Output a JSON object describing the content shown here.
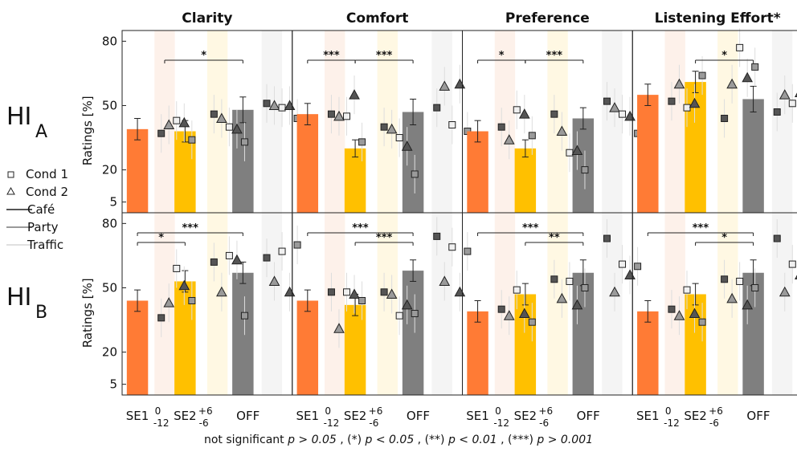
{
  "columns": [
    "Clarity",
    "Comfort",
    "Preference",
    "Listening Effort*"
  ],
  "rows": [
    {
      "label": "HI",
      "sub": "A"
    },
    {
      "label": "HI",
      "sub": "B"
    }
  ],
  "ylabel": "Ratings [%]",
  "yticks": [
    5,
    20,
    50,
    80
  ],
  "x_ticks": {
    "se1": "SE1",
    "snr0": "0",
    "snr_neg12": "-12",
    "se2": "SE2",
    "snr_pos6": "+6",
    "snr_neg6": "-6",
    "off": "OFF"
  },
  "legend": [
    {
      "label": "Cond 1",
      "kind": "marker",
      "shape": "square"
    },
    {
      "label": "Cond 2",
      "kind": "marker",
      "shape": "triangle"
    },
    {
      "label": "Café",
      "kind": "line",
      "color": "#555555"
    },
    {
      "label": "Party",
      "kind": "line",
      "color": "#9a9a9a"
    },
    {
      "label": "Traffic",
      "kind": "line",
      "color": "#e0e0e0"
    }
  ],
  "footer": {
    "ns": "not significant ",
    "ns_p": "p > 0.05",
    "s1": " , (*) ",
    "s1_p": "p < 0.05",
    "s2": " , (**) ",
    "s2_p": "p < 0.01",
    "s3": " , (***) ",
    "s3_p": "p > 0.001"
  },
  "colors": {
    "se1": "#ff7b35",
    "se2": "#ffc000",
    "off": "#7f7f7f",
    "band_se1": "#fdf1ea",
    "band_se2": "#fff8e3",
    "band_off": "#f4f4f4",
    "cafe": "#555555",
    "party": "#9a9a9a",
    "traffic": "#e0e0e0"
  },
  "chart_data": {
    "type": "bar",
    "ylim": [
      0,
      85
    ],
    "categories": [
      "SE1",
      "SE2",
      "OFF"
    ],
    "panels": [
      {
        "row": "HI A",
        "col": "Clarity",
        "bars": [
          {
            "v": 39,
            "e": 5
          },
          {
            "v": 38,
            "e": 5
          },
          {
            "v": 48,
            "e": 6
          }
        ],
        "markers": [
          [
            37,
            41,
            43,
            42,
            34
          ],
          [
            46,
            44,
            40,
            39,
            33
          ],
          [
            51,
            50,
            49,
            50,
            44
          ]
        ],
        "sig": [
          {
            "x1": 2,
            "x2": 5,
            "lvl": 0,
            "label": "*"
          }
        ]
      },
      {
        "row": "HI A",
        "col": "Comfort",
        "bars": [
          {
            "v": 46,
            "e": 5
          },
          {
            "v": 30,
            "e": 4
          },
          {
            "v": 47,
            "e": 6
          }
        ],
        "markers": [
          [
            46,
            45,
            45,
            55,
            33
          ],
          [
            40,
            39,
            35,
            31,
            18
          ],
          [
            49,
            59,
            41,
            60,
            38
          ]
        ],
        "sig": [
          {
            "x1": 1,
            "x2": 3,
            "lvl": 0,
            "label": "***"
          },
          {
            "x1": 3,
            "x2": 5,
            "lvl": 0,
            "label": "***"
          }
        ]
      },
      {
        "row": "HI A",
        "col": "Preference",
        "bars": [
          {
            "v": 38,
            "e": 5
          },
          {
            "v": 30,
            "e": 4
          },
          {
            "v": 44,
            "e": 5
          }
        ],
        "markers": [
          [
            40,
            34,
            48,
            46,
            36
          ],
          [
            46,
            38,
            28,
            29,
            20
          ],
          [
            52,
            49,
            46,
            45,
            37
          ]
        ],
        "sig": [
          {
            "x1": 1,
            "x2": 3,
            "lvl": 0,
            "label": "*"
          },
          {
            "x1": 3,
            "x2": 5,
            "lvl": 0,
            "label": "***"
          }
        ]
      },
      {
        "row": "HI A",
        "col": "Listening Effort*",
        "bars": [
          {
            "v": 55,
            "e": 5
          },
          {
            "v": 61,
            "e": 5
          },
          {
            "v": 53,
            "e": 6
          }
        ],
        "markers": [
          [
            52,
            60,
            49,
            51,
            64
          ],
          [
            44,
            60,
            77,
            63,
            68
          ],
          [
            47,
            55,
            51,
            56,
            62
          ]
        ],
        "sig": [
          {
            "x1": 3,
            "x2": 5,
            "lvl": 0,
            "label": "*"
          }
        ]
      },
      {
        "row": "HI B",
        "col": "Clarity",
        "bars": [
          {
            "v": 44,
            "e": 5
          },
          {
            "v": 53,
            "e": 5
          },
          {
            "v": 57,
            "e": 5
          }
        ],
        "markers": [
          [
            36,
            43,
            59,
            51,
            44
          ],
          [
            62,
            48,
            65,
            63,
            37
          ],
          [
            64,
            53,
            67,
            48,
            70
          ]
        ],
        "sig": [
          {
            "x1": 1,
            "x2": 3,
            "lvl": 0,
            "label": "*"
          },
          {
            "x1": 1,
            "x2": 5,
            "lvl": 1,
            "label": "***"
          }
        ]
      },
      {
        "row": "HI B",
        "col": "Comfort",
        "bars": [
          {
            "v": 44,
            "e": 5
          },
          {
            "v": 42,
            "e": 5
          },
          {
            "v": 58,
            "e": 5
          }
        ],
        "markers": [
          [
            48,
            31,
            48,
            47,
            44
          ],
          [
            48,
            47,
            37,
            42,
            38
          ],
          [
            74,
            53,
            69,
            48,
            67
          ]
        ],
        "sig": [
          {
            "x1": 1,
            "x2": 5,
            "lvl": 1,
            "label": "***"
          },
          {
            "x1": 3,
            "x2": 5,
            "lvl": 0,
            "label": "***"
          }
        ]
      },
      {
        "row": "HI B",
        "col": "Preference",
        "bars": [
          {
            "v": 39,
            "e": 5
          },
          {
            "v": 47,
            "e": 5
          },
          {
            "v": 57,
            "e": 6
          }
        ],
        "markers": [
          [
            40,
            37,
            49,
            38,
            34
          ],
          [
            54,
            45,
            53,
            42,
            50
          ],
          [
            73,
            48,
            61,
            56,
            60
          ]
        ],
        "sig": [
          {
            "x1": 1,
            "x2": 5,
            "lvl": 1,
            "label": "***"
          },
          {
            "x1": 3,
            "x2": 5,
            "lvl": 0,
            "label": "**"
          }
        ]
      },
      {
        "row": "HI B",
        "col": "Listening Effort*",
        "bars": [
          {
            "v": 39,
            "e": 5
          },
          {
            "v": 47,
            "e": 5
          },
          {
            "v": 57,
            "e": 6
          }
        ],
        "markers": [
          [
            40,
            37,
            49,
            38,
            34
          ],
          [
            54,
            45,
            53,
            42,
            50
          ],
          [
            73,
            48,
            61,
            56,
            60
          ]
        ],
        "sig": [
          {
            "x1": 1,
            "x2": 5,
            "lvl": 1,
            "label": "***"
          },
          {
            "x1": 3,
            "x2": 5,
            "lvl": 0,
            "label": "*"
          }
        ]
      }
    ]
  }
}
